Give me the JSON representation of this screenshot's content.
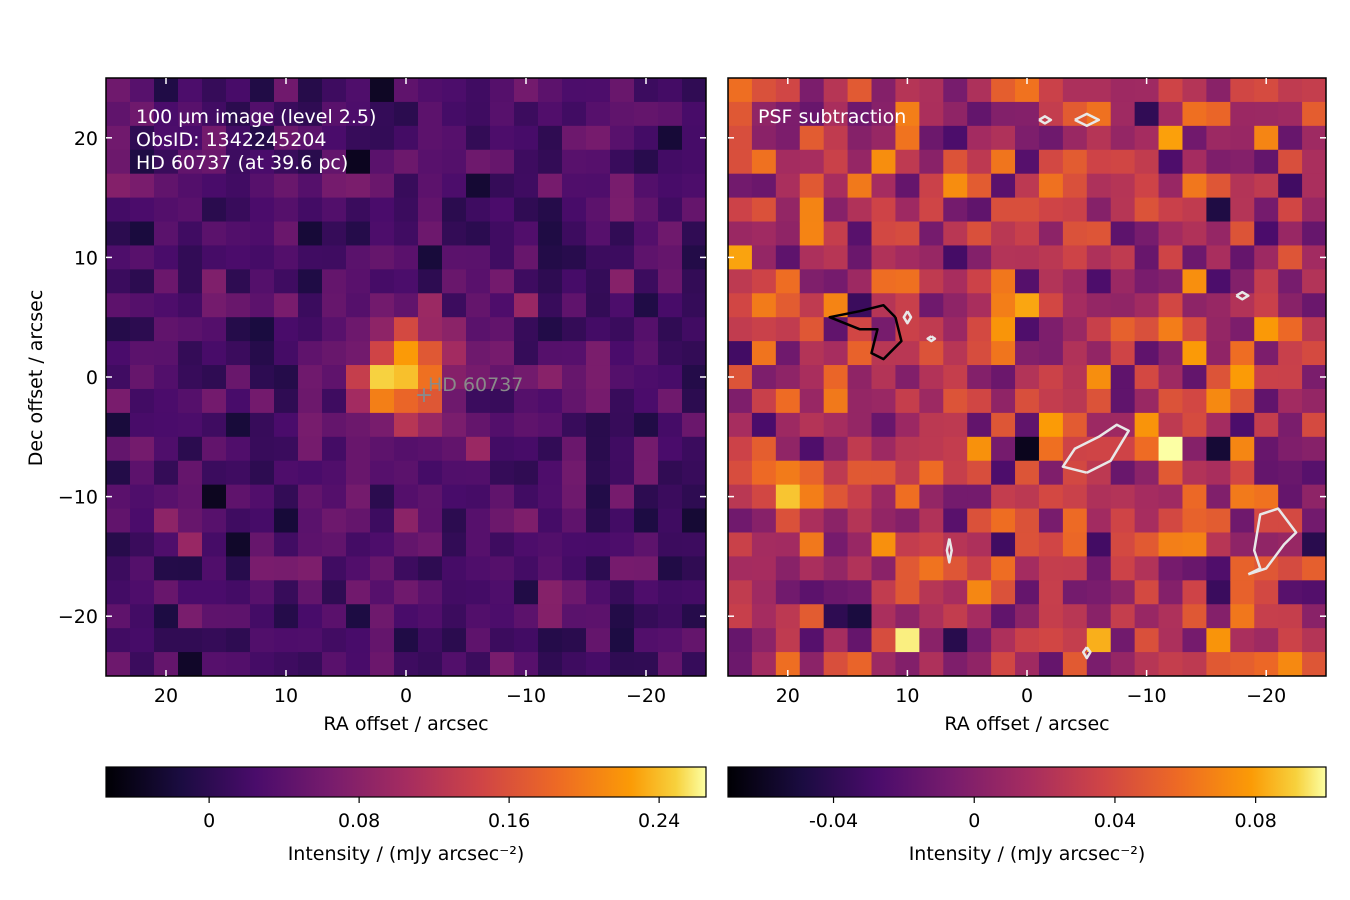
{
  "chart_data": [
    {
      "type": "heatmap",
      "panel": "left",
      "xlabel": "RA offset / arcsec",
      "ylabel": "Dec offset / arcsec",
      "xlim": [
        25,
        -25
      ],
      "ylim": [
        -25,
        25
      ],
      "xticks": [
        20,
        10,
        0,
        -10,
        -20
      ],
      "xtick_labels": [
        "20",
        "10",
        "0",
        "−10",
        "−20"
      ],
      "yticks": [
        20,
        10,
        0,
        -10,
        -20
      ],
      "ytick_labels": [
        "20",
        "10",
        "0",
        "−10",
        "−20"
      ],
      "pixel_size_arcsec": 2,
      "grid_size": 25,
      "colormap": "inferno",
      "annotation_lines": [
        "100 µm image (level 2.5)",
        "ObsID: 1342245204",
        "HD 60737 (at 39.6 pc)"
      ],
      "marker": {
        "label": "HD  60737",
        "ra": -1.5,
        "dec": -1.5,
        "symbol": "+"
      },
      "source": {
        "ra": 0,
        "dec": 0,
        "peak": 0.25,
        "sigma_arcsec": 2.8
      },
      "noise_level": 0.022,
      "background": 0.025,
      "colorbar": {
        "label": "Intensity / (mJy arcsec⁻²)",
        "vmin": -0.055,
        "vmax": 0.265,
        "ticks": [
          0,
          0.08,
          0.16,
          0.24
        ],
        "tick_labels": [
          "0",
          "0.08",
          "0.16",
          "0.24"
        ]
      }
    },
    {
      "type": "heatmap",
      "panel": "right",
      "xlabel": "RA offset / arcsec",
      "xlim": [
        25,
        -25
      ],
      "ylim": [
        -25,
        25
      ],
      "xticks": [
        20,
        10,
        0,
        -10,
        -20
      ],
      "xtick_labels": [
        "20",
        "10",
        "0",
        "−10",
        "−20"
      ],
      "yticks": [
        20,
        10,
        0,
        -10,
        -20
      ],
      "pixel_size_arcsec": 2,
      "grid_size": 25,
      "colormap": "inferno",
      "annotation_lines": [
        "PSF subtraction"
      ],
      "noise_level": 0.028,
      "background": 0.02,
      "contours": [
        {
          "color": "#000000",
          "level": 0.06,
          "points": [
            [
              11,
              5
            ],
            [
              12,
              6
            ],
            [
              14,
              5.5
            ],
            [
              16.5,
              5
            ],
            [
              14,
              4
            ],
            [
              12.5,
              4
            ],
            [
              13,
              2
            ],
            [
              12,
              1.5
            ],
            [
              10.5,
              3
            ],
            [
              11,
              5
            ]
          ]
        },
        {
          "color": "#e8e8e8",
          "level": -0.06,
          "points": [
            [
              -5,
              -8
            ],
            [
              -7,
              -7
            ],
            [
              -8.5,
              -4.5
            ],
            [
              -7.5,
              -4
            ],
            [
              -6,
              -5
            ],
            [
              -4,
              -6
            ],
            [
              -3,
              -7.5
            ],
            [
              -5,
              -8
            ]
          ]
        },
        {
          "color": "#e8e8e8",
          "level": -0.06,
          "points": [
            [
              -18.5,
              -16.5
            ],
            [
              -20,
              -16
            ],
            [
              -21.5,
              -14
            ],
            [
              -22.5,
              -13
            ],
            [
              -21,
              -11
            ],
            [
              -19.5,
              -11.5
            ],
            [
              -19,
              -14.5
            ],
            [
              -19.5,
              -16
            ],
            [
              -18.5,
              -16.5
            ]
          ]
        },
        {
          "color": "#e8e8e8",
          "level": -0.06,
          "points": [
            [
              -4,
              21.5
            ],
            [
              -5,
              22
            ],
            [
              -6,
              21.5
            ],
            [
              -5,
              21
            ],
            [
              -4,
              21.5
            ]
          ]
        },
        {
          "color": "#e8e8e8",
          "level": -0.06,
          "points": [
            [
              -1,
              21.5
            ],
            [
              -1.5,
              21.8
            ],
            [
              -2,
              21.5
            ],
            [
              -1.5,
              21.2
            ],
            [
              -1,
              21.5
            ]
          ]
        },
        {
          "color": "#e8e8e8",
          "level": -0.06,
          "points": [
            [
              -17.5,
              6.8
            ],
            [
              -18,
              7.1
            ],
            [
              -18.5,
              6.8
            ],
            [
              -18,
              6.5
            ],
            [
              -17.5,
              6.8
            ]
          ]
        },
        {
          "color": "#e8e8e8",
          "level": -0.06,
          "points": [
            [
              10,
              5.5
            ],
            [
              10.3,
              5
            ],
            [
              10,
              4.5
            ],
            [
              9.7,
              5
            ],
            [
              10,
              5.5
            ]
          ]
        },
        {
          "color": "#e8e8e8",
          "level": -0.06,
          "points": [
            [
              8,
              3.4
            ],
            [
              8.3,
              3.2
            ],
            [
              8,
              3
            ],
            [
              7.7,
              3.2
            ],
            [
              8,
              3.4
            ]
          ]
        },
        {
          "color": "#e8e8e8",
          "level": -0.06,
          "points": [
            [
              6.5,
              -13.5
            ],
            [
              6.7,
              -14.5
            ],
            [
              6.5,
              -15.5
            ],
            [
              6.3,
              -14.5
            ],
            [
              6.5,
              -13.5
            ]
          ]
        },
        {
          "color": "#e8e8e8",
          "level": -0.06,
          "points": [
            [
              -5,
              -22.6
            ],
            [
              -5.3,
              -23
            ],
            [
              -5,
              -23.5
            ],
            [
              -4.7,
              -23
            ],
            [
              -5,
              -22.6
            ]
          ]
        }
      ],
      "colorbar": {
        "label": "Intensity / (mJy arcsec⁻²)",
        "vmin": -0.07,
        "vmax": 0.1,
        "ticks": [
          -0.04,
          0,
          0.04,
          0.08
        ],
        "tick_labels": [
          "-0.04",
          "0",
          "0.04",
          "0.08"
        ]
      }
    }
  ]
}
